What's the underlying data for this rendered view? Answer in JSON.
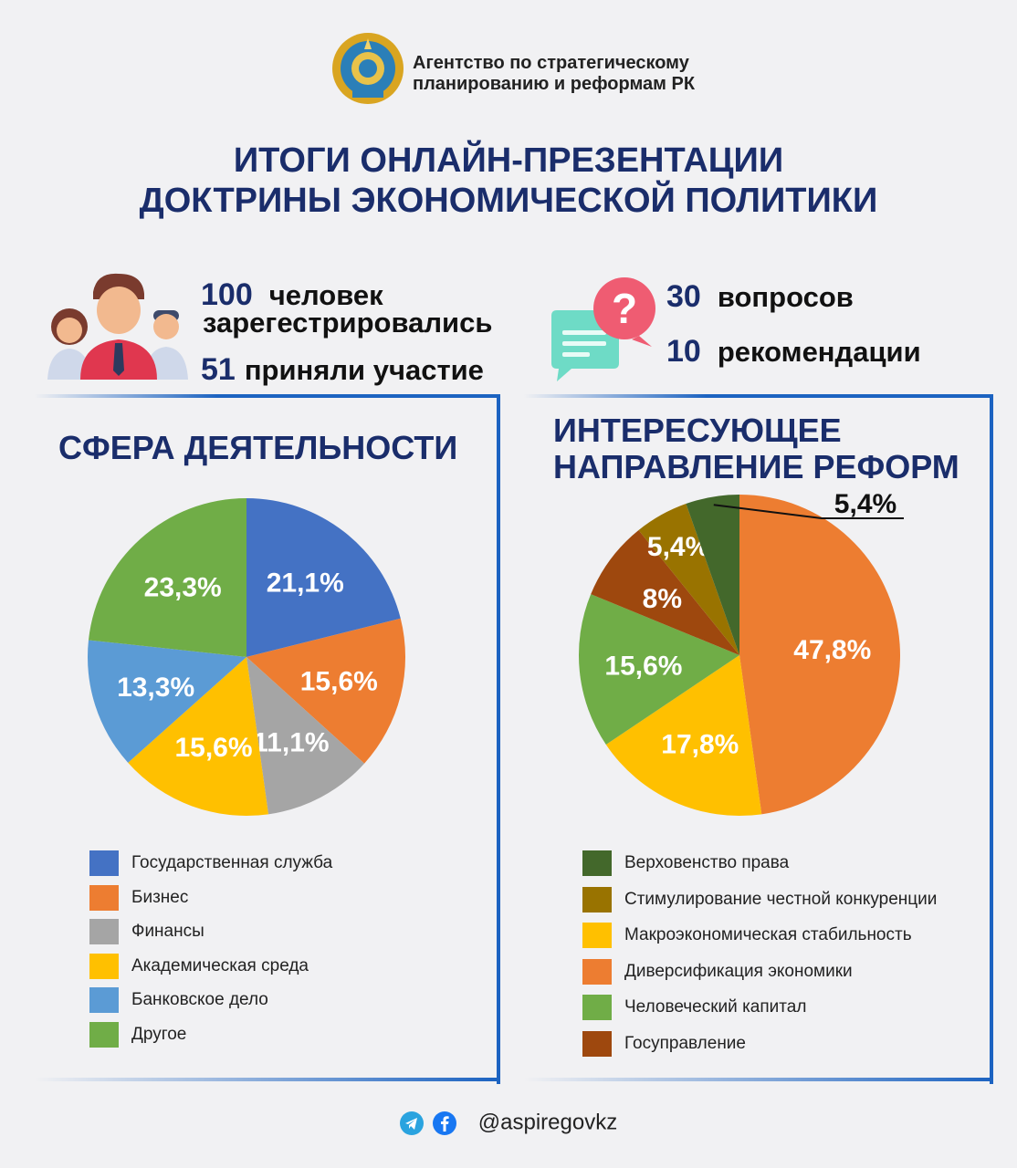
{
  "header": {
    "agency_line1": "Агентство по стратегическому",
    "agency_line2": "планированию и реформам РК",
    "title_line1": "ИТОГИ ОНЛАЙН-ПРЕЗЕНТАЦИИ",
    "title_line2": "ДОКТРИНЫ ЭКОНОМИЧЕСКОЙ ПОЛИТИКИ"
  },
  "stats": {
    "registered_num": "100",
    "registered_word": "человек",
    "registered_text": "зарегестрировались",
    "participated_num": "51",
    "participated_text": "приняли участие",
    "questions_num": "30",
    "questions_text": "вопросов",
    "recommendations_num": "10",
    "recommendations_text": "рекомендации"
  },
  "panels": {
    "left_title": "СФЕРА ДЕЯТЕЛЬНОСТИ",
    "right_title_line1": "ИНТЕРЕСУЮЩЕЕ",
    "right_title_line2": "НАПРАВЛЕНИЕ РЕФОРМ"
  },
  "chart_data": [
    {
      "type": "pie",
      "categories": [
        "Государственная служба",
        "Бизнес",
        "Финансы",
        "Академическая среда",
        "Банковское дело",
        "Другое"
      ],
      "values": [
        21.1,
        15.6,
        11.1,
        15.6,
        13.3,
        23.3
      ],
      "labels": [
        "21,1%",
        "15,6%",
        "11,1%",
        "15,6%",
        "13,3%",
        "23,3%"
      ],
      "colors": [
        "#4472c4",
        "#ed7d31",
        "#a5a5a5",
        "#ffc000",
        "#5b9bd5",
        "#70ad47"
      ]
    },
    {
      "type": "pie",
      "categories": [
        "Диверсификация экономики",
        "Макроэкономическая стабильность",
        "Человеческий капитал",
        "Госуправление",
        "Стимулирование честной конкуренции",
        "Верховенство права"
      ],
      "values": [
        47.8,
        17.8,
        15.6,
        8,
        5.4,
        5.4
      ],
      "labels": [
        "47,8%",
        "17,8%",
        "15,6%",
        "8%",
        "5,4%",
        "5,4%"
      ],
      "colors": [
        "#ed7d31",
        "#ffc000",
        "#70ad47",
        "#9e480e",
        "#997300",
        "#43682b"
      ],
      "legend_order": [
        "Верховенство права",
        "Стимулирование честной конкуренции",
        "Макроэкономическая стабильность",
        "Диверсификация экономики",
        "Человеческий капитал",
        "Госуправление"
      ]
    }
  ],
  "footer": {
    "handle": "@aspiregovkz"
  },
  "icons": [
    "emblem-icon",
    "people-icon",
    "question-bubble-icon",
    "telegram-icon",
    "facebook-icon"
  ]
}
